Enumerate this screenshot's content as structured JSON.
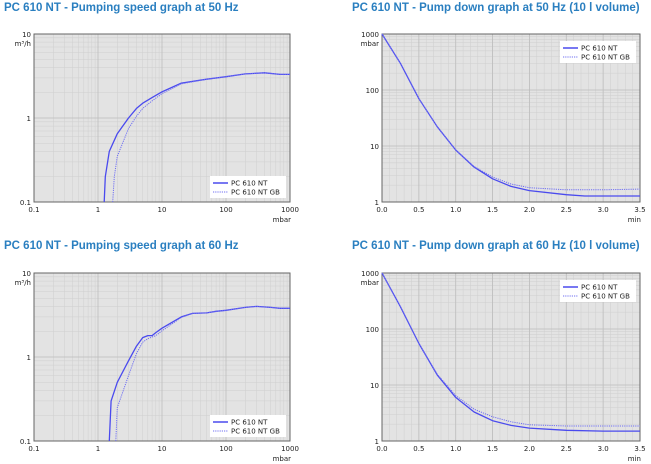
{
  "chart_data": [
    {
      "type": "line",
      "title": "PC 610 NT - Pumping speed graph at 50 Hz",
      "xlabel": "mbar",
      "ylabel": "m³/h",
      "xscale": "log",
      "yscale": "log",
      "xlim": [
        0.1,
        1000
      ],
      "ylim": [
        0.1,
        10
      ],
      "xticks": [
        0.1,
        1,
        10,
        100,
        1000
      ],
      "xtick_labels": [
        "0.1",
        "1",
        "10",
        "100",
        "1000"
      ],
      "yticks": [
        0.1,
        1,
        10
      ],
      "ytick_labels": [
        "0.1",
        "1",
        "10"
      ],
      "grid": true,
      "legend_position": "bottom-right",
      "series": [
        {
          "name": "PC 610 NT",
          "style": "solid",
          "color": "#4a4aee",
          "x": [
            1.25,
            1.3,
            1.5,
            2,
            3,
            4,
            5,
            7,
            10,
            20,
            50,
            100,
            200,
            400,
            700,
            1000
          ],
          "y": [
            0.1,
            0.2,
            0.4,
            0.65,
            1.0,
            1.3,
            1.5,
            1.75,
            2.05,
            2.6,
            2.9,
            3.1,
            3.35,
            3.45,
            3.3,
            3.3
          ]
        },
        {
          "name": "PC 610 NT GB",
          "style": "dotted",
          "color": "#6f6ff2",
          "x": [
            1.7,
            1.8,
            2,
            3,
            4,
            5,
            7,
            10,
            20,
            50,
            100,
            200,
            400,
            700,
            1000
          ],
          "y": [
            0.1,
            0.2,
            0.35,
            0.75,
            1.05,
            1.3,
            1.6,
            1.95,
            2.55,
            2.9,
            3.1,
            3.35,
            3.45,
            3.3,
            3.3
          ]
        }
      ]
    },
    {
      "type": "line",
      "title": "PC 610 NT - Pump down graph at 50 Hz (10 l volume)",
      "xlabel": "min",
      "ylabel": "mbar",
      "xscale": "linear",
      "yscale": "log",
      "xlim": [
        0,
        3.5
      ],
      "ylim": [
        1,
        1000
      ],
      "xticks": [
        0,
        0.5,
        1,
        1.5,
        2,
        2.5,
        3,
        3.5
      ],
      "xtick_labels": [
        "0.0",
        "0.5",
        "1.0",
        "1.5",
        "2.0",
        "2.5",
        "3.0",
        "3.5"
      ],
      "yticks": [
        1,
        10,
        100,
        1000
      ],
      "ytick_labels": [
        "1",
        "10",
        "100",
        "1000"
      ],
      "grid": true,
      "legend_position": "top-right",
      "series": [
        {
          "name": "PC 610 NT",
          "style": "solid",
          "color": "#4a4aee",
          "x": [
            0,
            0.25,
            0.5,
            0.75,
            1.0,
            1.25,
            1.5,
            1.75,
            2.0,
            2.5,
            2.75,
            3.0,
            3.5
          ],
          "y": [
            1000,
            300,
            70,
            22,
            8.5,
            4.2,
            2.6,
            1.9,
            1.6,
            1.35,
            1.28,
            1.28,
            1.28
          ]
        },
        {
          "name": "PC 610 NT GB",
          "style": "dotted",
          "color": "#6f6ff2",
          "x": [
            0,
            0.25,
            0.5,
            0.75,
            1.0,
            1.25,
            1.5,
            1.75,
            2.0,
            2.5,
            3.0,
            3.5
          ],
          "y": [
            1000,
            300,
            70,
            22,
            8.5,
            4.3,
            2.8,
            2.1,
            1.8,
            1.65,
            1.65,
            1.7
          ]
        }
      ]
    },
    {
      "type": "line",
      "title": "PC 610 NT - Pumping speed graph at 60 Hz",
      "xlabel": "mbar",
      "ylabel": "m³/h",
      "xscale": "log",
      "yscale": "log",
      "xlim": [
        0.1,
        1000
      ],
      "ylim": [
        0.1,
        10
      ],
      "xticks": [
        0.1,
        1,
        10,
        100,
        1000
      ],
      "xtick_labels": [
        "0.1",
        "1",
        "10",
        "100",
        "1000"
      ],
      "yticks": [
        0.1,
        1,
        10
      ],
      "ytick_labels": [
        "0.1",
        "1",
        "10"
      ],
      "grid": true,
      "legend_position": "bottom-right",
      "series": [
        {
          "name": "PC 610 NT",
          "style": "solid",
          "color": "#4a4aee",
          "x": [
            1.5,
            1.6,
            2,
            3,
            4,
            5,
            6,
            7,
            8,
            10,
            20,
            30,
            50,
            70,
            100,
            200,
            300,
            500,
            700,
            1000
          ],
          "y": [
            0.1,
            0.3,
            0.5,
            0.9,
            1.35,
            1.7,
            1.8,
            1.8,
            1.95,
            2.2,
            3.0,
            3.3,
            3.35,
            3.5,
            3.6,
            3.9,
            4.0,
            3.9,
            3.8,
            3.8
          ]
        },
        {
          "name": "PC 610 NT GB",
          "style": "dotted",
          "color": "#6f6ff2",
          "x": [
            1.9,
            2,
            3,
            4,
            5,
            6,
            8,
            10,
            20,
            30,
            50,
            70,
            100,
            200,
            300,
            500,
            700,
            1000
          ],
          "y": [
            0.1,
            0.25,
            0.6,
            1.1,
            1.5,
            1.65,
            1.8,
            2.05,
            2.95,
            3.3,
            3.35,
            3.5,
            3.6,
            3.9,
            4.0,
            3.9,
            3.8,
            3.8
          ]
        }
      ]
    },
    {
      "type": "line",
      "title": "PC 610 NT - Pump down graph at 60 Hz (10 l volume)",
      "xlabel": "min",
      "ylabel": "mbar",
      "xscale": "linear",
      "yscale": "log",
      "xlim": [
        0,
        3.5
      ],
      "ylim": [
        1,
        1000
      ],
      "xticks": [
        0,
        0.5,
        1,
        1.5,
        2,
        2.5,
        3,
        3.5
      ],
      "xtick_labels": [
        "0.0",
        "0.5",
        "1.0",
        "1.5",
        "2.0",
        "2.5",
        "3.0",
        "3.5"
      ],
      "yticks": [
        1,
        10,
        100,
        1000
      ],
      "ytick_labels": [
        "1",
        "10",
        "100",
        "1000"
      ],
      "grid": true,
      "legend_position": "top-right",
      "series": [
        {
          "name": "PC 610 NT",
          "style": "solid",
          "color": "#4a4aee",
          "x": [
            0,
            0.25,
            0.5,
            0.75,
            1.0,
            1.25,
            1.5,
            1.75,
            2.0,
            2.5,
            3.0,
            3.5
          ],
          "y": [
            1000,
            250,
            55,
            15,
            6,
            3.3,
            2.3,
            1.9,
            1.7,
            1.55,
            1.5,
            1.5
          ]
        },
        {
          "name": "PC 610 NT GB",
          "style": "dotted",
          "color": "#6f6ff2",
          "x": [
            0,
            0.25,
            0.5,
            0.75,
            1.0,
            1.25,
            1.5,
            1.75,
            2.0,
            2.5,
            3.0,
            3.5
          ],
          "y": [
            1000,
            250,
            55,
            15.5,
            6.5,
            3.7,
            2.7,
            2.2,
            1.95,
            1.85,
            1.85,
            1.85
          ]
        }
      ]
    }
  ]
}
